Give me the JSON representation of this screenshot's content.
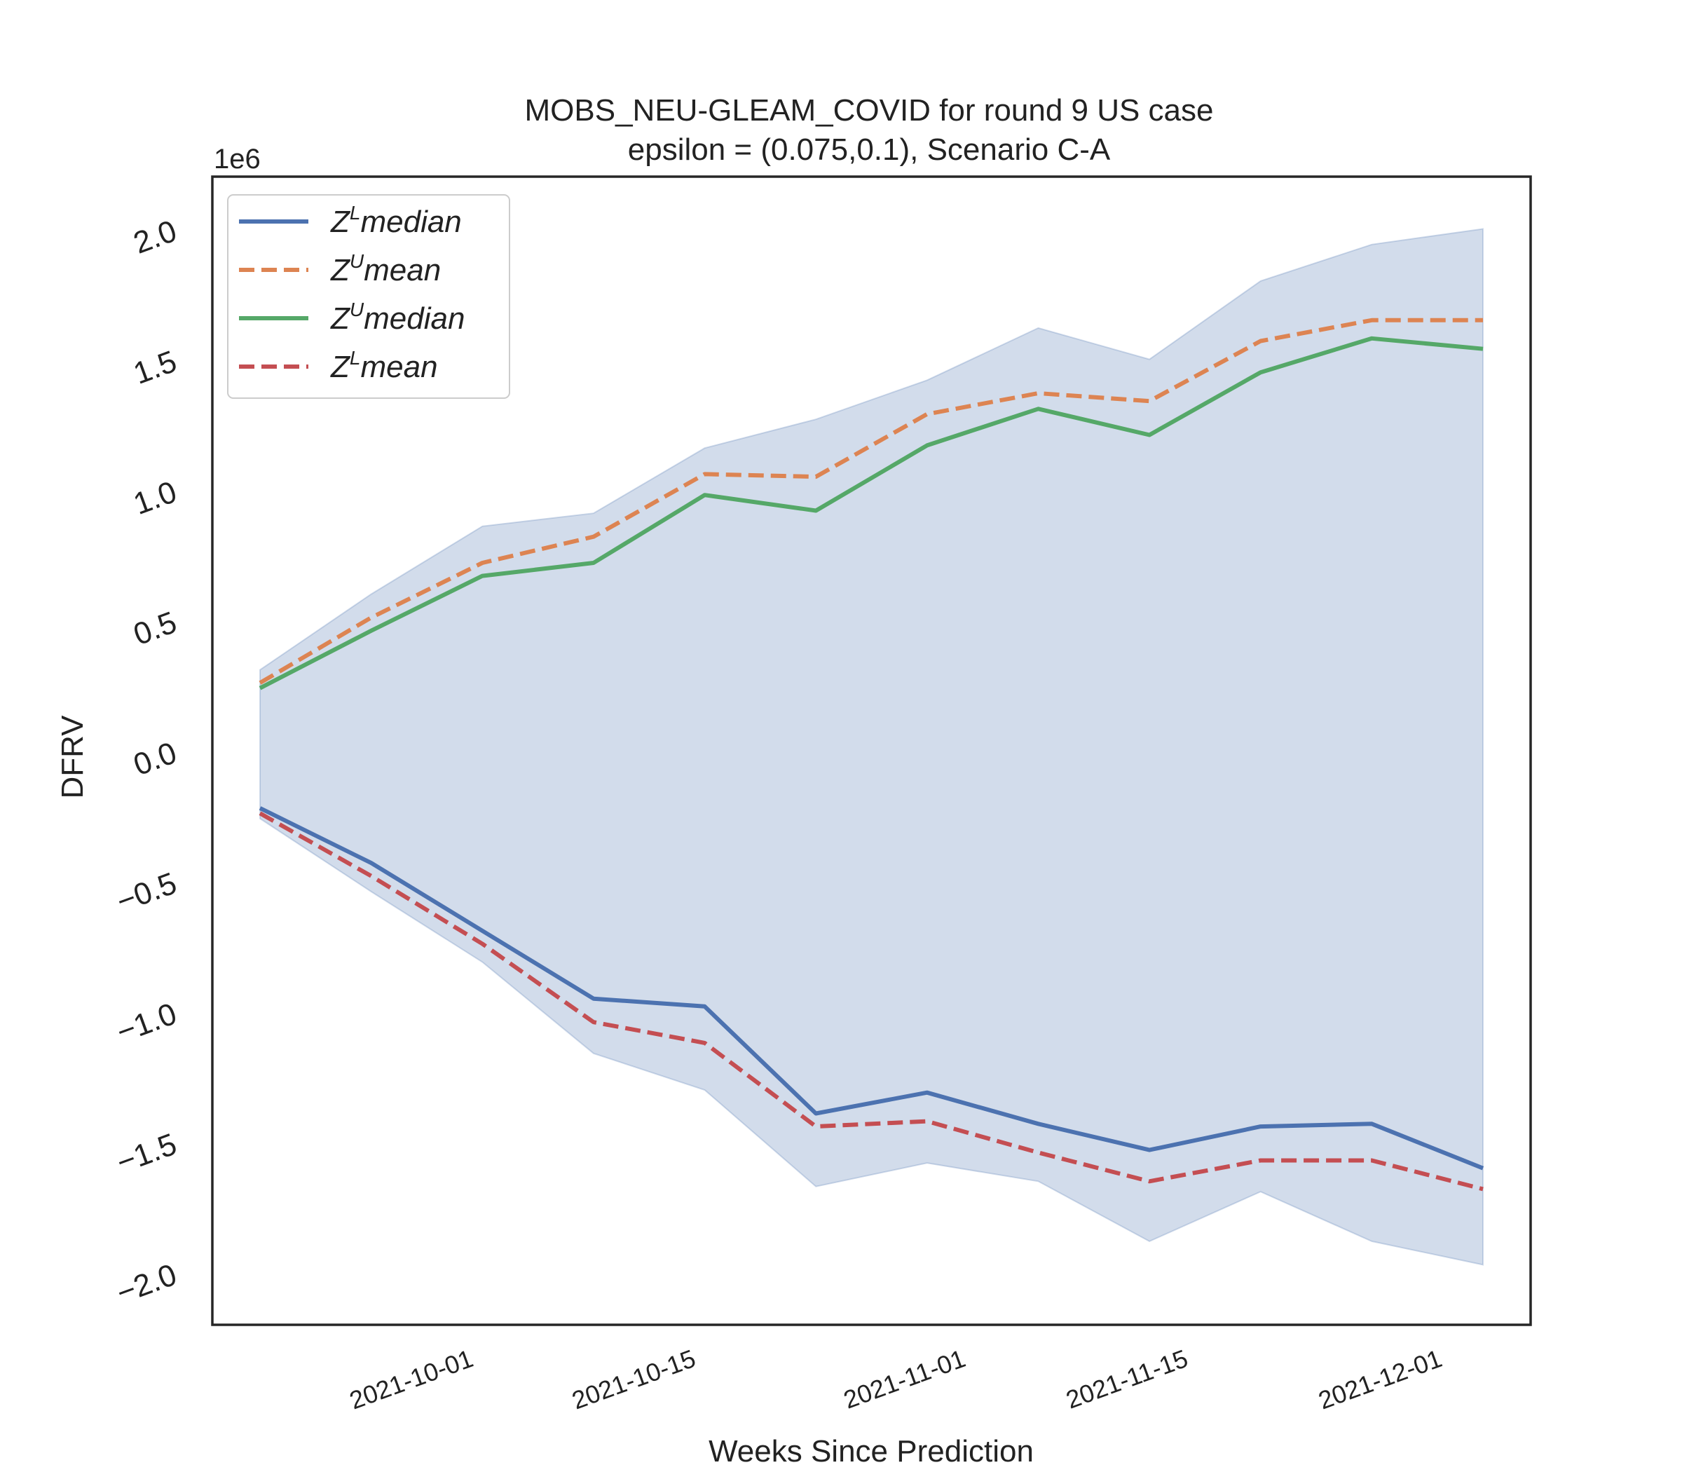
{
  "chart_data": {
    "type": "line",
    "title": "MOBS_NEU-GLEAM_COVID for round 9 US  case",
    "subtitle": "epsilon = (0.075,0.1), Scenario C-A",
    "xlabel": "Weeks Since Prediction",
    "ylabel": "DFRV",
    "y_offset_label": "1e6",
    "x": [
      "2021-09-18",
      "2021-09-25",
      "2021-10-02",
      "2021-10-09",
      "2021-10-16",
      "2021-10-23",
      "2021-10-30",
      "2021-11-06",
      "2021-11-13",
      "2021-11-20",
      "2021-11-27",
      "2021-12-04"
    ],
    "x_tick_labels": [
      "2021-10-01",
      "2021-10-15",
      "2021-11-01",
      "2021-11-15",
      "2021-12-01"
    ],
    "y_tick_labels": [
      "−2.0",
      "−1.5",
      "−1.0",
      "−0.5",
      "0.0",
      "0.5",
      "1.0",
      "1.5",
      "2.0"
    ],
    "y_ticks": [
      -2.0,
      -1.5,
      -1.0,
      -0.5,
      0.0,
      0.5,
      1.0,
      1.5,
      2.0
    ],
    "ylim": [
      -2.2,
      2.2
    ],
    "xlim": [
      "2021-09-15",
      "2021-12-07"
    ],
    "grid": false,
    "legend_position": "top-left",
    "band": {
      "color": "#4c72b0",
      "upper": [
        0.31,
        0.6,
        0.86,
        0.91,
        1.16,
        1.27,
        1.42,
        1.62,
        1.5,
        1.8,
        1.94,
        2.0
      ],
      "lower": [
        -0.26,
        -0.54,
        -0.81,
        -1.16,
        -1.3,
        -1.67,
        -1.58,
        -1.65,
        -1.88,
        -1.69,
        -1.88,
        -1.97
      ]
    },
    "series": [
      {
        "name": "Z^L median",
        "base": "Z",
        "sup": "L",
        "stat": "median",
        "color": "#4c72b0",
        "dashed": false,
        "values": [
          -0.22,
          -0.43,
          -0.69,
          -0.95,
          -0.98,
          -1.39,
          -1.31,
          -1.43,
          -1.53,
          -1.44,
          -1.43,
          -1.6
        ]
      },
      {
        "name": "Z^U mean",
        "base": "Z",
        "sup": "U",
        "stat": "mean",
        "color": "#dd8452",
        "dashed": true,
        "values": [
          0.26,
          0.51,
          0.72,
          0.82,
          1.06,
          1.05,
          1.29,
          1.37,
          1.34,
          1.57,
          1.65,
          1.65
        ]
      },
      {
        "name": "Z^U median",
        "base": "Z",
        "sup": "U",
        "stat": "median",
        "color": "#55a868",
        "dashed": false,
        "values": [
          0.24,
          0.46,
          0.67,
          0.72,
          0.98,
          0.92,
          1.17,
          1.31,
          1.21,
          1.45,
          1.58,
          1.54
        ]
      },
      {
        "name": "Z^L mean",
        "base": "Z",
        "sup": "L",
        "stat": "mean",
        "color": "#c44e52",
        "dashed": true,
        "values": [
          -0.24,
          -0.48,
          -0.74,
          -1.04,
          -1.12,
          -1.44,
          -1.42,
          -1.54,
          -1.65,
          -1.57,
          -1.57,
          -1.68
        ]
      }
    ]
  }
}
